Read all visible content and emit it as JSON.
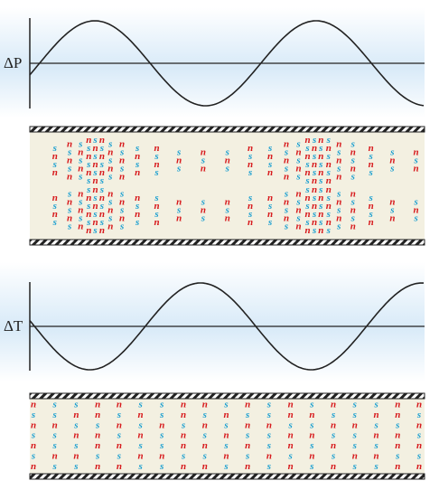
{
  "wave_panels": [
    {
      "label": "ΔP"
    },
    {
      "label": "ΔT"
    }
  ],
  "tube_1": {
    "columns": [
      [
        "s",
        "n",
        "s",
        "n",
        "n",
        "s",
        "n",
        "s"
      ],
      [
        "n",
        "s",
        "n",
        "s",
        "n",
        "s",
        "n",
        "s",
        "n",
        "s"
      ],
      [
        "s",
        "n",
        "s",
        "n",
        "s",
        "n",
        "s",
        "n",
        "s",
        "n"
      ],
      [
        "n",
        "s",
        "n",
        "s",
        "n",
        "s",
        "s",
        "n",
        "s",
        "n",
        "s",
        "n"
      ],
      [
        "s",
        "n",
        "s",
        "n",
        "s",
        "n",
        "n",
        "s",
        "n",
        "s",
        "n",
        "s"
      ],
      [
        "n",
        "s",
        "n",
        "s",
        "n",
        "s",
        "s",
        "n",
        "s",
        "n",
        "s",
        "n"
      ],
      [
        "s",
        "n",
        "s",
        "n",
        "s",
        "n",
        "s",
        "n",
        "s",
        "n"
      ],
      [
        "n",
        "s",
        "n",
        "s",
        "n",
        "s",
        "n",
        "s",
        "n",
        "s"
      ],
      [
        "s",
        "n",
        "s",
        "n",
        "n",
        "s",
        "n",
        "s"
      ],
      [
        "n",
        "s",
        "n",
        "s",
        "s",
        "n",
        "s",
        "n"
      ],
      [
        "s",
        "n",
        "s",
        "n",
        "s",
        "n"
      ],
      [
        "n",
        "s",
        "n",
        "s",
        "n",
        "s"
      ],
      [
        "s",
        "n",
        "s",
        "n",
        "s",
        "n"
      ],
      [
        "n",
        "s",
        "n",
        "s",
        "s",
        "n",
        "s",
        "n"
      ],
      [
        "s",
        "n",
        "s",
        "n",
        "n",
        "s",
        "n",
        "s"
      ],
      [
        "n",
        "s",
        "n",
        "s",
        "n",
        "s",
        "n",
        "s",
        "n",
        "s"
      ],
      [
        "s",
        "n",
        "s",
        "n",
        "s",
        "n",
        "s",
        "n",
        "s",
        "n"
      ],
      [
        "n",
        "s",
        "n",
        "s",
        "n",
        "s",
        "s",
        "n",
        "s",
        "n",
        "s",
        "n"
      ],
      [
        "s",
        "n",
        "s",
        "n",
        "s",
        "n",
        "n",
        "s",
        "n",
        "s",
        "n",
        "s"
      ],
      [
        "n",
        "s",
        "n",
        "s",
        "n",
        "s",
        "s",
        "n",
        "s",
        "n",
        "s",
        "n"
      ],
      [
        "s",
        "n",
        "s",
        "n",
        "s",
        "n",
        "n",
        "s",
        "n",
        "s",
        "n",
        "s"
      ],
      [
        "n",
        "s",
        "n",
        "s",
        "n",
        "s",
        "n",
        "s",
        "n",
        "s"
      ],
      [
        "s",
        "n",
        "s",
        "n",
        "s",
        "n",
        "s",
        "n",
        "s",
        "n"
      ],
      [
        "n",
        "s",
        "n",
        "s",
        "s",
        "n",
        "s",
        "n"
      ],
      [
        "s",
        "n",
        "s",
        "n",
        "s",
        "n"
      ],
      [
        "n",
        "s",
        "n",
        "s",
        "n",
        "s"
      ]
    ]
  },
  "tube_2": {
    "columns": [
      [
        "n",
        "s",
        "n",
        "s",
        "n",
        "s",
        "n"
      ],
      [
        "s",
        "s",
        "n",
        "s",
        "s",
        "n",
        "s"
      ],
      [
        "s",
        "n",
        "s",
        "n",
        "s",
        "n",
        "s"
      ],
      [
        "n",
        "n",
        "s",
        "n",
        "n",
        "s",
        "n"
      ],
      [
        "n",
        "s",
        "n",
        "s",
        "n",
        "s",
        "n"
      ],
      [
        "s",
        "n",
        "s",
        "n",
        "s",
        "n",
        "s"
      ],
      [
        "s",
        "s",
        "n",
        "s",
        "s",
        "n",
        "s"
      ],
      [
        "n",
        "n",
        "s",
        "n",
        "n",
        "s",
        "n"
      ],
      [
        "n",
        "s",
        "n",
        "s",
        "n",
        "s",
        "n"
      ],
      [
        "s",
        "n",
        "s",
        "n",
        "s",
        "n",
        "s"
      ],
      [
        "n",
        "s",
        "n",
        "s",
        "n",
        "s",
        "n"
      ],
      [
        "s",
        "s",
        "n",
        "s",
        "s",
        "n",
        "s"
      ],
      [
        "n",
        "n",
        "s",
        "n",
        "n",
        "s",
        "n"
      ],
      [
        "s",
        "n",
        "s",
        "n",
        "s",
        "n",
        "s"
      ],
      [
        "n",
        "s",
        "n",
        "s",
        "n",
        "s",
        "n"
      ],
      [
        "s",
        "s",
        "n",
        "s",
        "s",
        "n",
        "s"
      ],
      [
        "s",
        "n",
        "s",
        "n",
        "s",
        "n",
        "s"
      ],
      [
        "n",
        "n",
        "s",
        "n",
        "n",
        "s",
        "n"
      ],
      [
        "n",
        "s",
        "n",
        "s",
        "n",
        "s",
        "n"
      ]
    ]
  }
}
